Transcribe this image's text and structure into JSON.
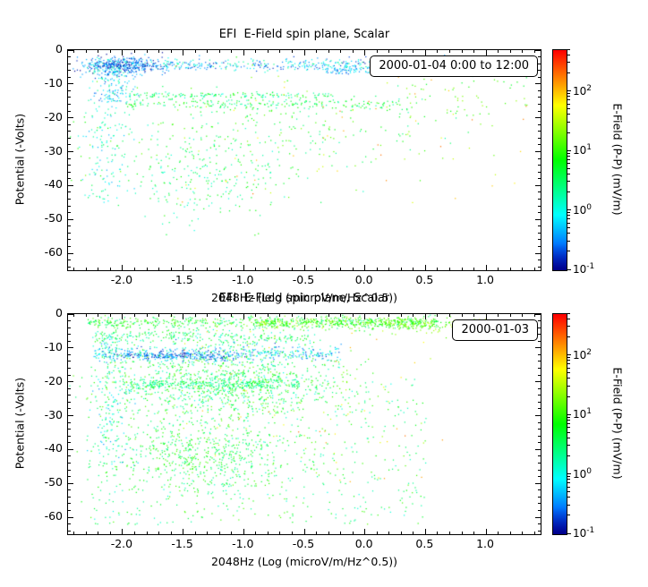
{
  "window": {
    "bg": "#ffffff",
    "accent": "#000000"
  },
  "plots": [
    {
      "title": "EFI  E-Field spin plane, Scalar",
      "xlabel": "2048Hz (Log (microV/m/Hz^0.5))",
      "ylabel": "Potential (-Volts)",
      "legend": "2000-01-04 0:00 to 12:00",
      "x_tick_labels": [
        "-2.0",
        "-1.5",
        "-1.0",
        "-0.5",
        "0.0",
        "0.5",
        "1.0"
      ],
      "y_tick_labels": [
        "0",
        "-10",
        "-20",
        "-30",
        "-40",
        "-50",
        "-60"
      ]
    },
    {
      "title": "EFI  E-Field spin plane, Scalar",
      "xlabel": "2048Hz (Log (microV/m/Hz^0.5))",
      "ylabel": "Potential (-Volts)",
      "legend": "2000-01-03",
      "x_tick_labels": [
        "-2.0",
        "-1.5",
        "-1.0",
        "-0.5",
        "0.0",
        "0.5",
        "1.0"
      ],
      "y_tick_labels": [
        "0",
        "-10",
        "-20",
        "-30",
        "-40",
        "-50",
        "-60"
      ]
    }
  ],
  "colorbar": {
    "label": "E-Field (P-P) (mV/m)",
    "base": "10",
    "exponents": [
      "2",
      "1",
      "0",
      "-1"
    ]
  },
  "chart_data": [
    {
      "type": "scatter",
      "title": "EFI  E-Field spin plane, Scalar",
      "xlabel": "2048Hz (Log (microV/m/Hz^0.5))",
      "ylabel": "Potential (-Volts)",
      "legend": "2000-01-04 0:00 to 12:00",
      "xlim": [
        -2.45,
        1.45
      ],
      "ylim": [
        -65,
        0
      ],
      "xticks": [
        -2.0,
        -1.5,
        -1.0,
        -0.5,
        0.0,
        0.5,
        1.0
      ],
      "yticks": [
        0,
        -10,
        -20,
        -30,
        -40,
        -50,
        -60
      ],
      "xminor": 0.1,
      "yminor": 2,
      "color_scale": {
        "type": "log",
        "label": "E-Field (P-P) (mV/m)",
        "log_min": -1.0,
        "log_max": 2.7,
        "tick_exponents": [
          2,
          1,
          0,
          -1
        ]
      },
      "seed": 20000104,
      "point_clusters": [
        {
          "n": 500,
          "xd": "u",
          "x": [
            -2.3,
            0.95
          ],
          "yd": "g",
          "y": [
            -4.2,
            0.9
          ],
          "v": [
            -0.9,
            0.4
          ]
        },
        {
          "n": 300,
          "xd": "g",
          "x": [
            -2.0,
            0.18
          ],
          "yd": "g",
          "y": [
            -4.5,
            1.3
          ],
          "v": [
            -1.0,
            -0.2
          ]
        },
        {
          "n": 200,
          "xd": "g",
          "x": [
            -2.08,
            0.1
          ],
          "yd": "u",
          "y": [
            -15,
            -2
          ],
          "v": [
            -0.8,
            0.4
          ]
        },
        {
          "n": 220,
          "xd": "u",
          "x": [
            -0.35,
            0.92
          ],
          "yd": "g",
          "y": [
            -5.8,
            0.7
          ],
          "v": [
            -0.7,
            0.1
          ]
        },
        {
          "n": 150,
          "xd": "u",
          "x": [
            -1.95,
            -0.25
          ],
          "yd": "g",
          "y": [
            -13.2,
            0.5
          ],
          "v": [
            0.0,
            1.0
          ]
        },
        {
          "n": 200,
          "xd": "u",
          "x": [
            -1.95,
            0.3
          ],
          "yd": "g",
          "y": [
            -15.8,
            0.8
          ],
          "v": [
            0.1,
            1.1
          ]
        },
        {
          "n": 280,
          "xd": "g",
          "x": [
            -0.9,
            0.85
          ],
          "yd": "g",
          "y": [
            -24,
            6
          ],
          "v": [
            0.2,
            1.3
          ]
        },
        {
          "n": 240,
          "xd": "g",
          "x": [
            -1.3,
            0.4
          ],
          "yd": "g",
          "y": [
            -38,
            6.5
          ],
          "v": [
            0.0,
            1.0
          ]
        },
        {
          "n": 120,
          "xd": "g",
          "x": [
            -2.15,
            0.1
          ],
          "yd": "u",
          "y": [
            -45,
            -15
          ],
          "v": [
            -0.4,
            0.5
          ]
        },
        {
          "n": 80,
          "xd": "u",
          "x": [
            -1.6,
            1.35
          ],
          "yd": "u",
          "y": [
            -45,
            -4
          ],
          "v": [
            1.2,
            2.3
          ]
        },
        {
          "n": 60,
          "xd": "u",
          "x": [
            0.2,
            1.35
          ],
          "yd": "u",
          "y": [
            -20,
            -5
          ],
          "v": [
            0.6,
            1.4
          ]
        }
      ]
    },
    {
      "type": "scatter",
      "title": "EFI  E-Field spin plane, Scalar",
      "xlabel": "2048Hz (Log (microV/m/Hz^0.5))",
      "ylabel": "Potential (-Volts)",
      "legend": "2000-01-03",
      "xlim": [
        -2.45,
        1.45
      ],
      "ylim": [
        -65,
        0
      ],
      "xticks": [
        -2.0,
        -1.5,
        -1.0,
        -0.5,
        0.0,
        0.5,
        1.0
      ],
      "yticks": [
        0,
        -10,
        -20,
        -30,
        -40,
        -50,
        -60
      ],
      "xminor": 0.1,
      "yminor": 2,
      "color_scale": {
        "type": "log",
        "label": "E-Field (P-P) (mV/m)",
        "log_min": -1.0,
        "log_max": 2.7,
        "tick_exponents": [
          2,
          1,
          0,
          -1
        ]
      },
      "seed": 20000103,
      "point_clusters": [
        {
          "n": 600,
          "xd": "u",
          "x": [
            -2.3,
            0.6
          ],
          "yd": "g",
          "y": [
            -2.3,
            0.9
          ],
          "v": [
            0.2,
            1.3
          ]
        },
        {
          "n": 300,
          "xd": "u",
          "x": [
            -0.9,
            0.55
          ],
          "yd": "g",
          "y": [
            -2.5,
            0.8
          ],
          "v": [
            0.7,
            1.6
          ]
        },
        {
          "n": 250,
          "xd": "u",
          "x": [
            -2.25,
            -0.4
          ],
          "yd": "g",
          "y": [
            -6.5,
            1.2
          ],
          "v": [
            0.0,
            1.0
          ]
        },
        {
          "n": 450,
          "xd": "u",
          "x": [
            -2.25,
            -0.2
          ],
          "yd": "g",
          "y": [
            -11.5,
            1.3
          ],
          "v": [
            -0.8,
            0.4
          ]
        },
        {
          "n": 200,
          "xd": "g",
          "x": [
            -1.55,
            0.25
          ],
          "yd": "g",
          "y": [
            -12.2,
            0.6
          ],
          "v": [
            -1.0,
            -0.2
          ]
        },
        {
          "n": 1100,
          "xd": "g",
          "x": [
            -1.15,
            0.55
          ],
          "yd": "g",
          "y": [
            -20,
            5
          ],
          "v": [
            0.0,
            1.3
          ]
        },
        {
          "n": 250,
          "xd": "u",
          "x": [
            -2.0,
            -0.55
          ],
          "yd": "g",
          "y": [
            -20.5,
            0.8
          ],
          "v": [
            0.0,
            0.9
          ]
        },
        {
          "n": 550,
          "xd": "g",
          "x": [
            -1.3,
            0.42
          ],
          "yd": "g",
          "y": [
            -42,
            6
          ],
          "v": [
            0.2,
            1.2
          ]
        },
        {
          "n": 500,
          "xd": "u",
          "x": [
            -2.3,
            0.5
          ],
          "yd": "u",
          "y": [
            -62,
            -25
          ],
          "v": [
            0.0,
            1.2
          ]
        },
        {
          "n": 80,
          "xd": "u",
          "x": [
            -1.5,
            0.7
          ],
          "yd": "u",
          "y": [
            -50,
            -3
          ],
          "v": [
            1.3,
            2.3
          ]
        },
        {
          "n": 100,
          "xd": "g",
          "x": [
            0.45,
            0.25
          ],
          "yd": "g",
          "y": [
            -3,
            1.2
          ],
          "v": [
            0.8,
            1.6
          ]
        },
        {
          "n": 150,
          "xd": "g",
          "x": [
            -2.1,
            0.08
          ],
          "yd": "u",
          "y": [
            -45,
            -5
          ],
          "v": [
            -0.5,
            0.6
          ]
        }
      ]
    }
  ]
}
